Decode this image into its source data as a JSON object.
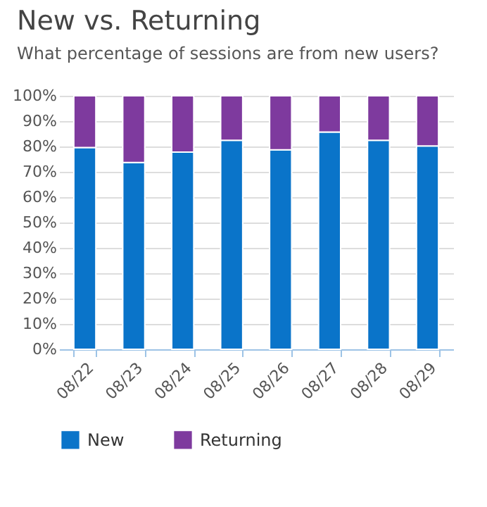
{
  "chart_data": {
    "type": "bar",
    "title": "New vs. Returning",
    "subtitle": "What percentage of sessions are from new users?",
    "categories": [
      "08/22",
      "08/23",
      "08/24",
      "08/25",
      "08/26",
      "08/27",
      "08/28",
      "08/29"
    ],
    "stacked": true,
    "series": [
      {
        "name": "New",
        "color": "#0a74c9",
        "values": [
          79.6,
          73.7,
          77.8,
          82.4,
          78.7,
          85.7,
          82.4,
          80.2
        ]
      },
      {
        "name": "Returning",
        "color": "#7e3a9e",
        "values": [
          20.4,
          26.3,
          22.2,
          17.6,
          21.3,
          14.3,
          17.6,
          19.8
        ]
      }
    ],
    "ylim": [
      0,
      100
    ],
    "yticks": [
      {
        "value": 0,
        "label": "0%"
      },
      {
        "value": 10,
        "label": "10%"
      },
      {
        "value": 20,
        "label": "20%"
      },
      {
        "value": 30,
        "label": "30%"
      },
      {
        "value": 40,
        "label": "40%"
      },
      {
        "value": 50,
        "label": "50%"
      },
      {
        "value": 60,
        "label": "60%"
      },
      {
        "value": 70,
        "label": "70%"
      },
      {
        "value": 80,
        "label": "80%"
      },
      {
        "value": 90,
        "label": "90%"
      },
      {
        "value": 100,
        "label": "100%"
      }
    ],
    "grid": "y",
    "legend": "bottom"
  }
}
